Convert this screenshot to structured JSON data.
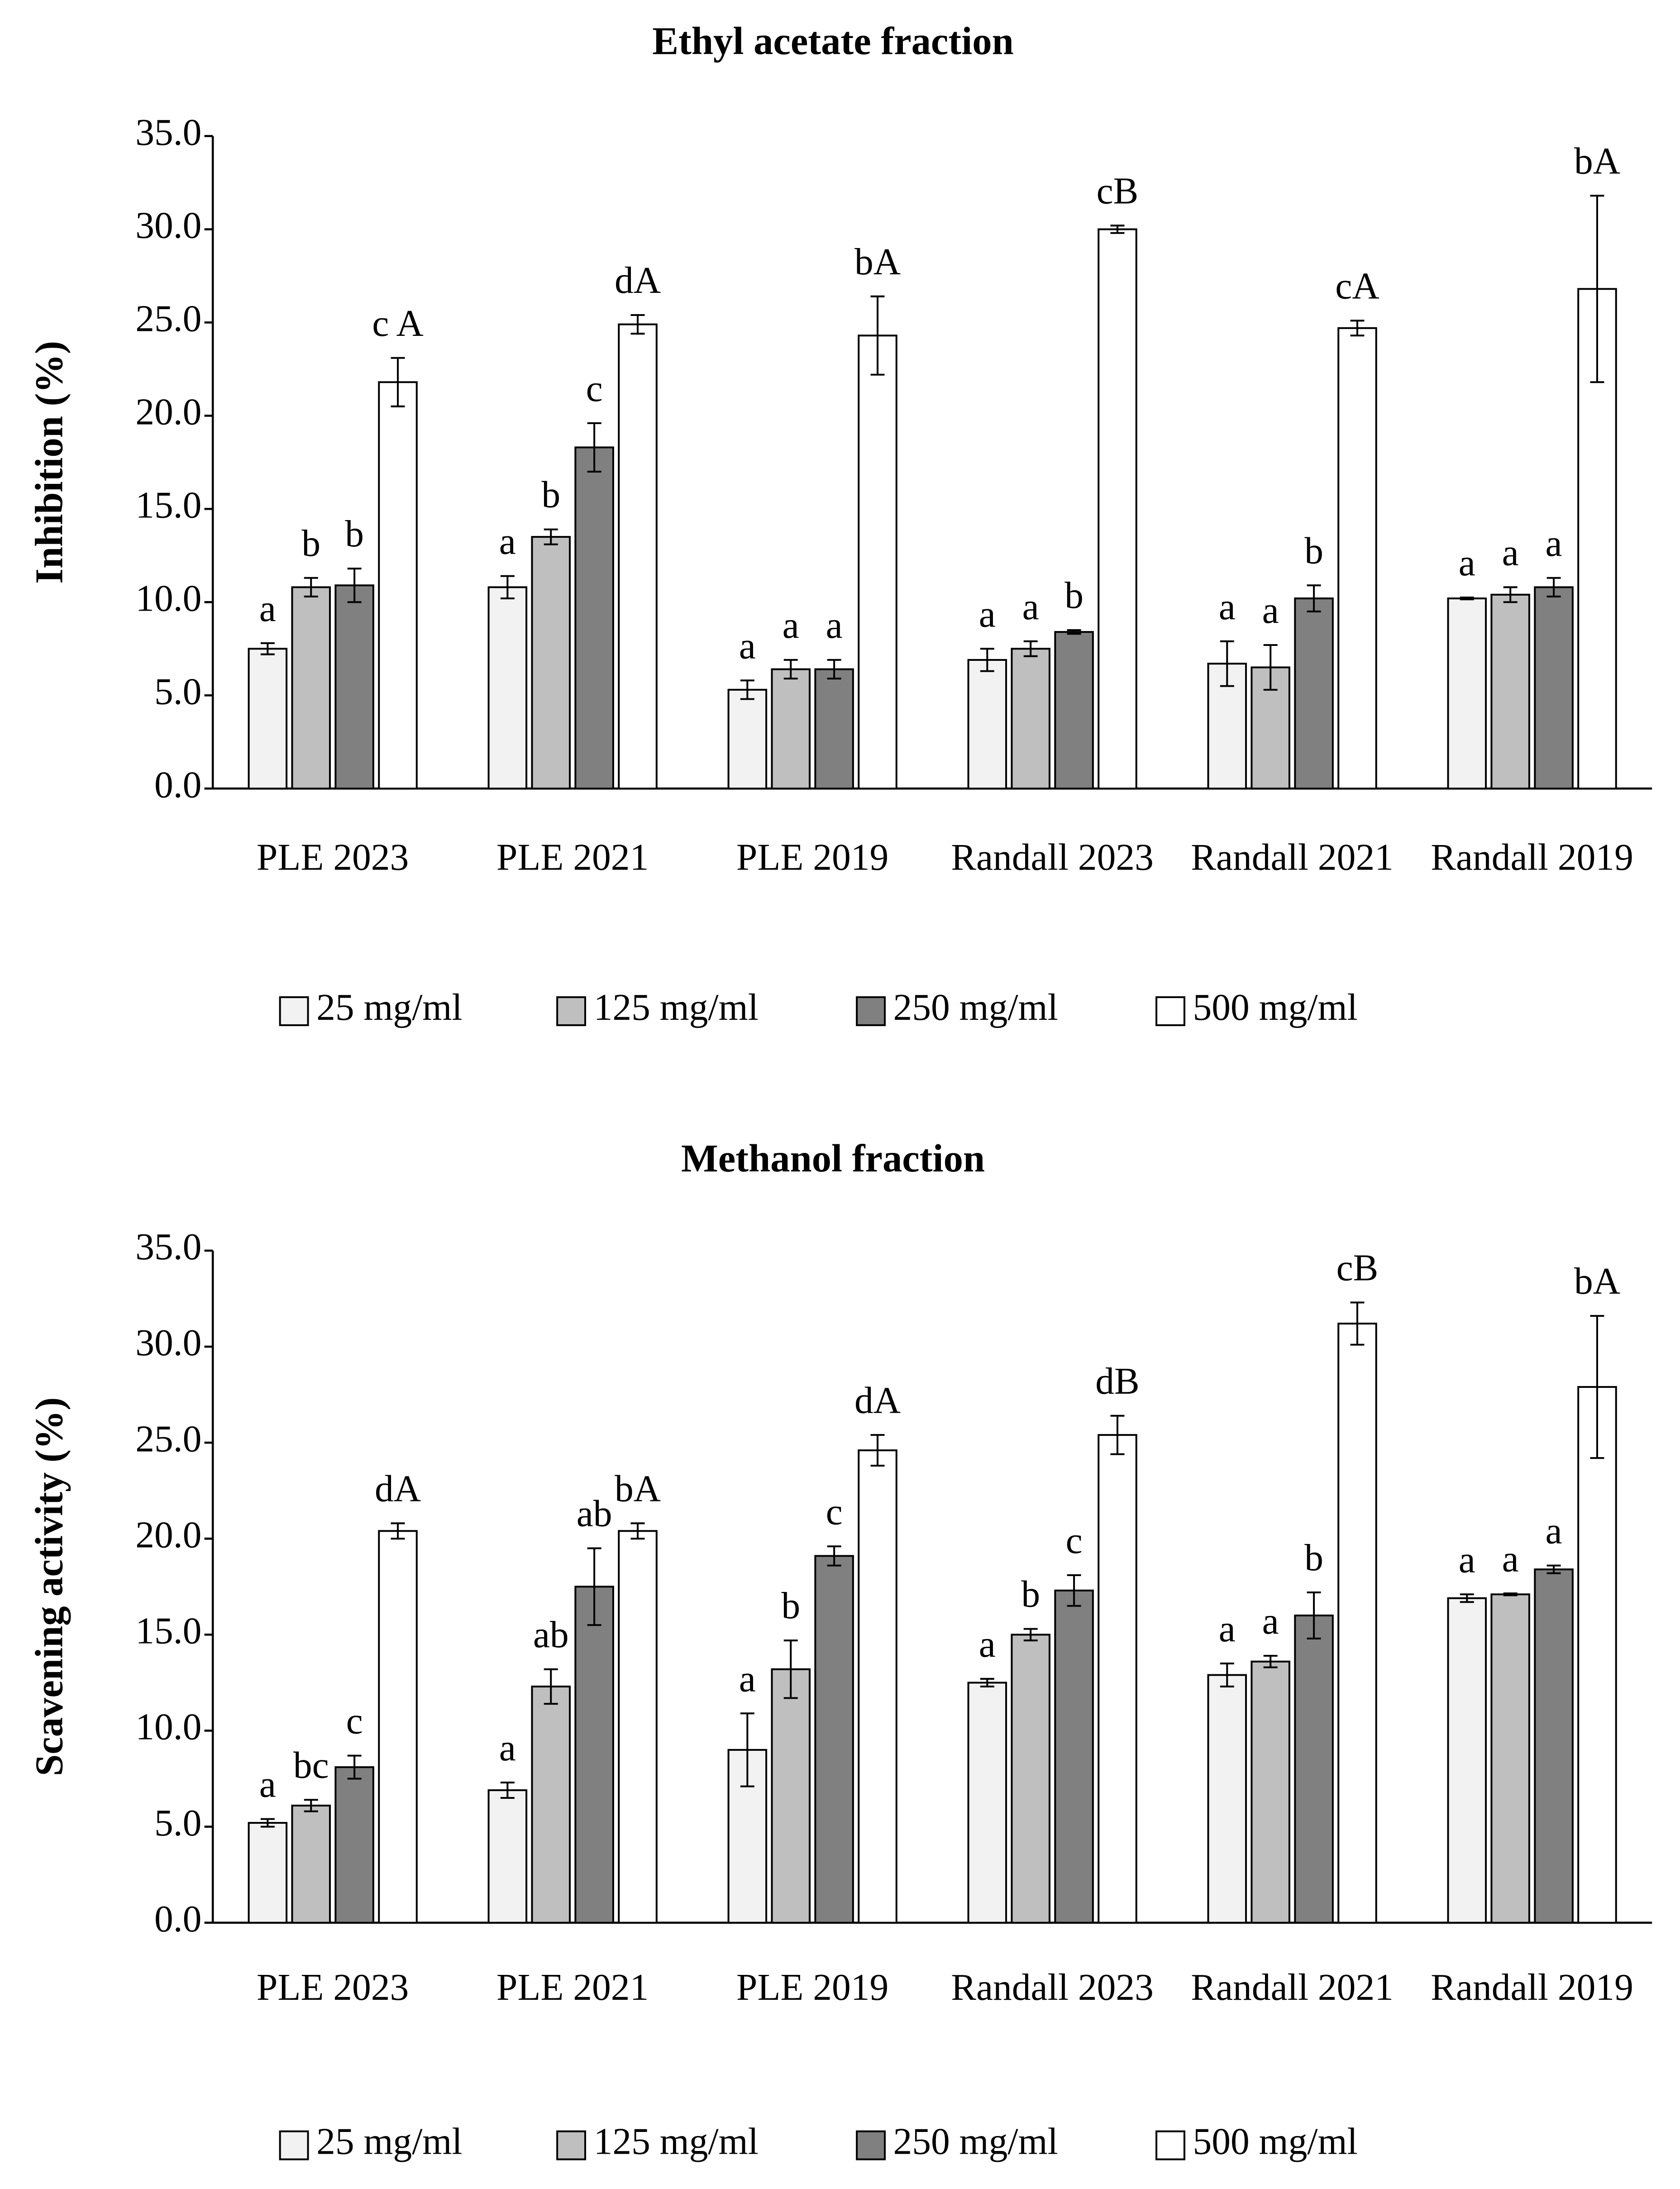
{
  "chart_data": [
    {
      "type": "bar",
      "title": "Ethyl acetate fraction",
      "y_label": "Inhibition (%)",
      "categories": [
        "PLE 2023",
        "PLE 2021",
        "PLE 2019",
        "Randall 2023",
        "Randall 2021",
        "Randall 2019"
      ],
      "ylim": [
        0,
        35
      ],
      "yticks": [
        {
          "value": 0,
          "label": "0.0"
        },
        {
          "value": 5,
          "label": "5.0"
        },
        {
          "value": 10,
          "label": "10.0"
        },
        {
          "value": 15,
          "label": "15.0"
        },
        {
          "value": 20,
          "label": "20.0"
        },
        {
          "value": 25,
          "label": "25.0"
        },
        {
          "value": 30,
          "label": "30.0"
        },
        {
          "value": 35,
          "label": "35.0"
        }
      ],
      "legend": "bottom",
      "series": [
        {
          "name": "25 mg/ml",
          "color": "#f2f2f2",
          "values": [
            7.5,
            10.8,
            5.3,
            6.9,
            6.7,
            10.2
          ],
          "errors": [
            0.3,
            0.6,
            0.5,
            0.6,
            1.2,
            0.05
          ],
          "labels": [
            "a",
            "a",
            "a",
            "a",
            "a",
            "a"
          ]
        },
        {
          "name": "125 mg/ml",
          "color": "#bfbfbf",
          "values": [
            10.8,
            13.5,
            6.4,
            7.5,
            6.5,
            10.4
          ],
          "errors": [
            0.5,
            0.4,
            0.5,
            0.4,
            1.2,
            0.4
          ],
          "labels": [
            "b",
            "b",
            "a",
            "a",
            "a",
            "a"
          ]
        },
        {
          "name": "250 mg/ml",
          "color": "#808080",
          "values": [
            10.9,
            18.3,
            6.4,
            8.4,
            10.2,
            10.8
          ],
          "errors": [
            0.9,
            1.3,
            0.5,
            0.1,
            0.7,
            0.5
          ],
          "labels": [
            "b",
            "c",
            "a",
            "b",
            "b",
            "a"
          ]
        },
        {
          "name": "500 mg/ml",
          "color": "#ffffff",
          "values": [
            21.8,
            24.9,
            24.3,
            30.0,
            24.7,
            26.8
          ],
          "errors": [
            1.3,
            0.5,
            2.1,
            0.2,
            0.4,
            5.0
          ],
          "labels": [
            "c A",
            "dA",
            "bA",
            "cB",
            "cA",
            "bA"
          ]
        }
      ]
    },
    {
      "type": "bar",
      "title": "Methanol fraction",
      "y_label": "Scavening activity (%)",
      "categories": [
        "PLE 2023",
        "PLE 2021",
        "PLE 2019",
        "Randall 2023",
        "Randall 2021",
        "Randall 2019"
      ],
      "ylim": [
        0,
        35
      ],
      "yticks": [
        {
          "value": 0,
          "label": "0.0"
        },
        {
          "value": 5,
          "label": "5.0"
        },
        {
          "value": 10,
          "label": "10.0"
        },
        {
          "value": 15,
          "label": "15.0"
        },
        {
          "value": 20,
          "label": "20.0"
        },
        {
          "value": 25,
          "label": "25.0"
        },
        {
          "value": 30,
          "label": "30.0"
        },
        {
          "value": 35,
          "label": "35.0"
        }
      ],
      "legend": "bottom",
      "series": [
        {
          "name": "25 mg/ml",
          "color": "#f2f2f2",
          "values": [
            5.2,
            6.9,
            9.0,
            12.5,
            12.9,
            16.9
          ],
          "errors": [
            0.2,
            0.4,
            1.9,
            0.2,
            0.6,
            0.2
          ],
          "labels": [
            "a",
            "a",
            "a",
            "a",
            "a",
            "a"
          ]
        },
        {
          "name": "125 mg/ml",
          "color": "#bfbfbf",
          "values": [
            6.1,
            12.3,
            13.2,
            15.0,
            13.6,
            17.1
          ],
          "errors": [
            0.3,
            0.9,
            1.5,
            0.3,
            0.3,
            0.05
          ],
          "labels": [
            "bc",
            "ab",
            "b",
            "b",
            "a",
            "a"
          ]
        },
        {
          "name": "250 mg/ml",
          "color": "#808080",
          "values": [
            8.1,
            17.5,
            19.1,
            17.3,
            16.0,
            18.4
          ],
          "errors": [
            0.6,
            2.0,
            0.5,
            0.8,
            1.2,
            0.2
          ],
          "labels": [
            "c",
            "ab",
            "c",
            "c",
            "b",
            "a"
          ]
        },
        {
          "name": "500 mg/ml",
          "color": "#ffffff",
          "values": [
            20.4,
            20.4,
            24.6,
            25.4,
            31.2,
            27.9
          ],
          "errors": [
            0.4,
            0.4,
            0.8,
            1.0,
            1.1,
            3.7
          ],
          "labels": [
            "dA",
            "bA",
            "dA",
            "dB",
            "cB",
            "bA"
          ]
        }
      ]
    }
  ]
}
